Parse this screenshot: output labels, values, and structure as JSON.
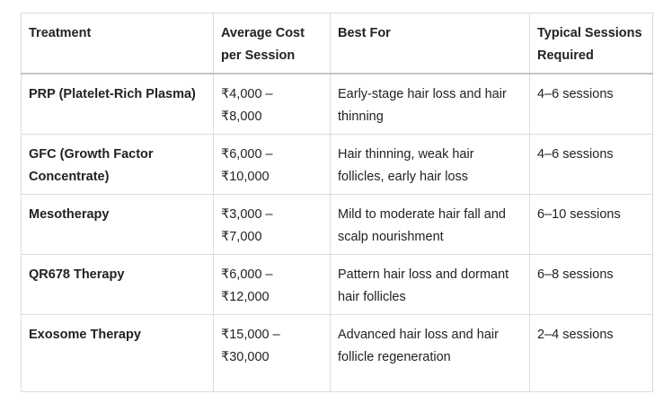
{
  "table": {
    "header": [
      "Treatment",
      "Average Cost per Session",
      "Best For",
      "Typical Sessions Required"
    ],
    "rows": [
      [
        "PRP (Platelet-Rich Plasma)",
        "₹4,000 – ₹8,000",
        "Early-stage hair loss and hair thinning",
        "4–6 sessions"
      ],
      [
        "GFC (Growth Factor Concentrate)",
        "₹6,000 – ₹10,000",
        "Hair thinning, weak hair follicles, early hair loss",
        "4–6 sessions"
      ],
      [
        "Mesotherapy",
        "₹3,000 – ₹7,000",
        "Mild to moderate hair fall and scalp nourishment",
        "6–10 sessions"
      ],
      [
        "QR678 Therapy",
        "₹6,000 – ₹12,000",
        "Pattern hair loss and dormant hair follicles",
        "6–8 sessions"
      ],
      [
        "Exosome Therapy",
        "₹15,000 – ₹30,000",
        "Advanced hair loss and hair follicle regeneration",
        "2–4 sessions"
      ]
    ]
  }
}
